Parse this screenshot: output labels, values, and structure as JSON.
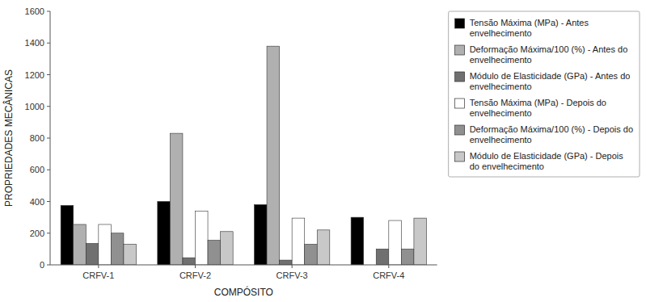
{
  "chart_data": {
    "type": "bar",
    "x_label": "COMPÓSITO",
    "y_label": "PROPRIEDADES MECÂNICAS",
    "categories": [
      "CRFV-1",
      "CRFV-2",
      "CRFV-3",
      "CRFV-4"
    ],
    "series": [
      {
        "name": "Tensão Máxima (MPa) - Antes\nenvelhecimento",
        "color": "#000000",
        "values": [
          375,
          400,
          380,
          300
        ]
      },
      {
        "name": "Deformação Máxima/100 (%) - Antes do\nenvelhecimento",
        "color": "#b0b0b0",
        "values": [
          255,
          830,
          1380,
          0
        ]
      },
      {
        "name": "Módulo de Elasticidade (GPa) - Antes do\nenvelhecimento",
        "color": "#707070",
        "values": [
          135,
          45,
          30,
          100
        ]
      },
      {
        "name": "Tensão Máxima (MPa) - Depois do\nenvelhecimento",
        "color": "#ffffff",
        "values": [
          255,
          340,
          295,
          280
        ]
      },
      {
        "name": "Deformação Máxima/100 (%) - Depois do\nenvelhecimento",
        "color": "#909090",
        "values": [
          200,
          155,
          130,
          100
        ]
      },
      {
        "name": "Módulo de Elasticidade (GPa) - Depois\ndo envelhecimento",
        "color": "#c8c8c8",
        "values": [
          130,
          210,
          220,
          295
        ]
      }
    ],
    "ylim": [
      0,
      1600
    ],
    "yticks": [
      0,
      200,
      400,
      600,
      800,
      1000,
      1200,
      1400,
      1600
    ],
    "grid": false,
    "legend": "right"
  }
}
